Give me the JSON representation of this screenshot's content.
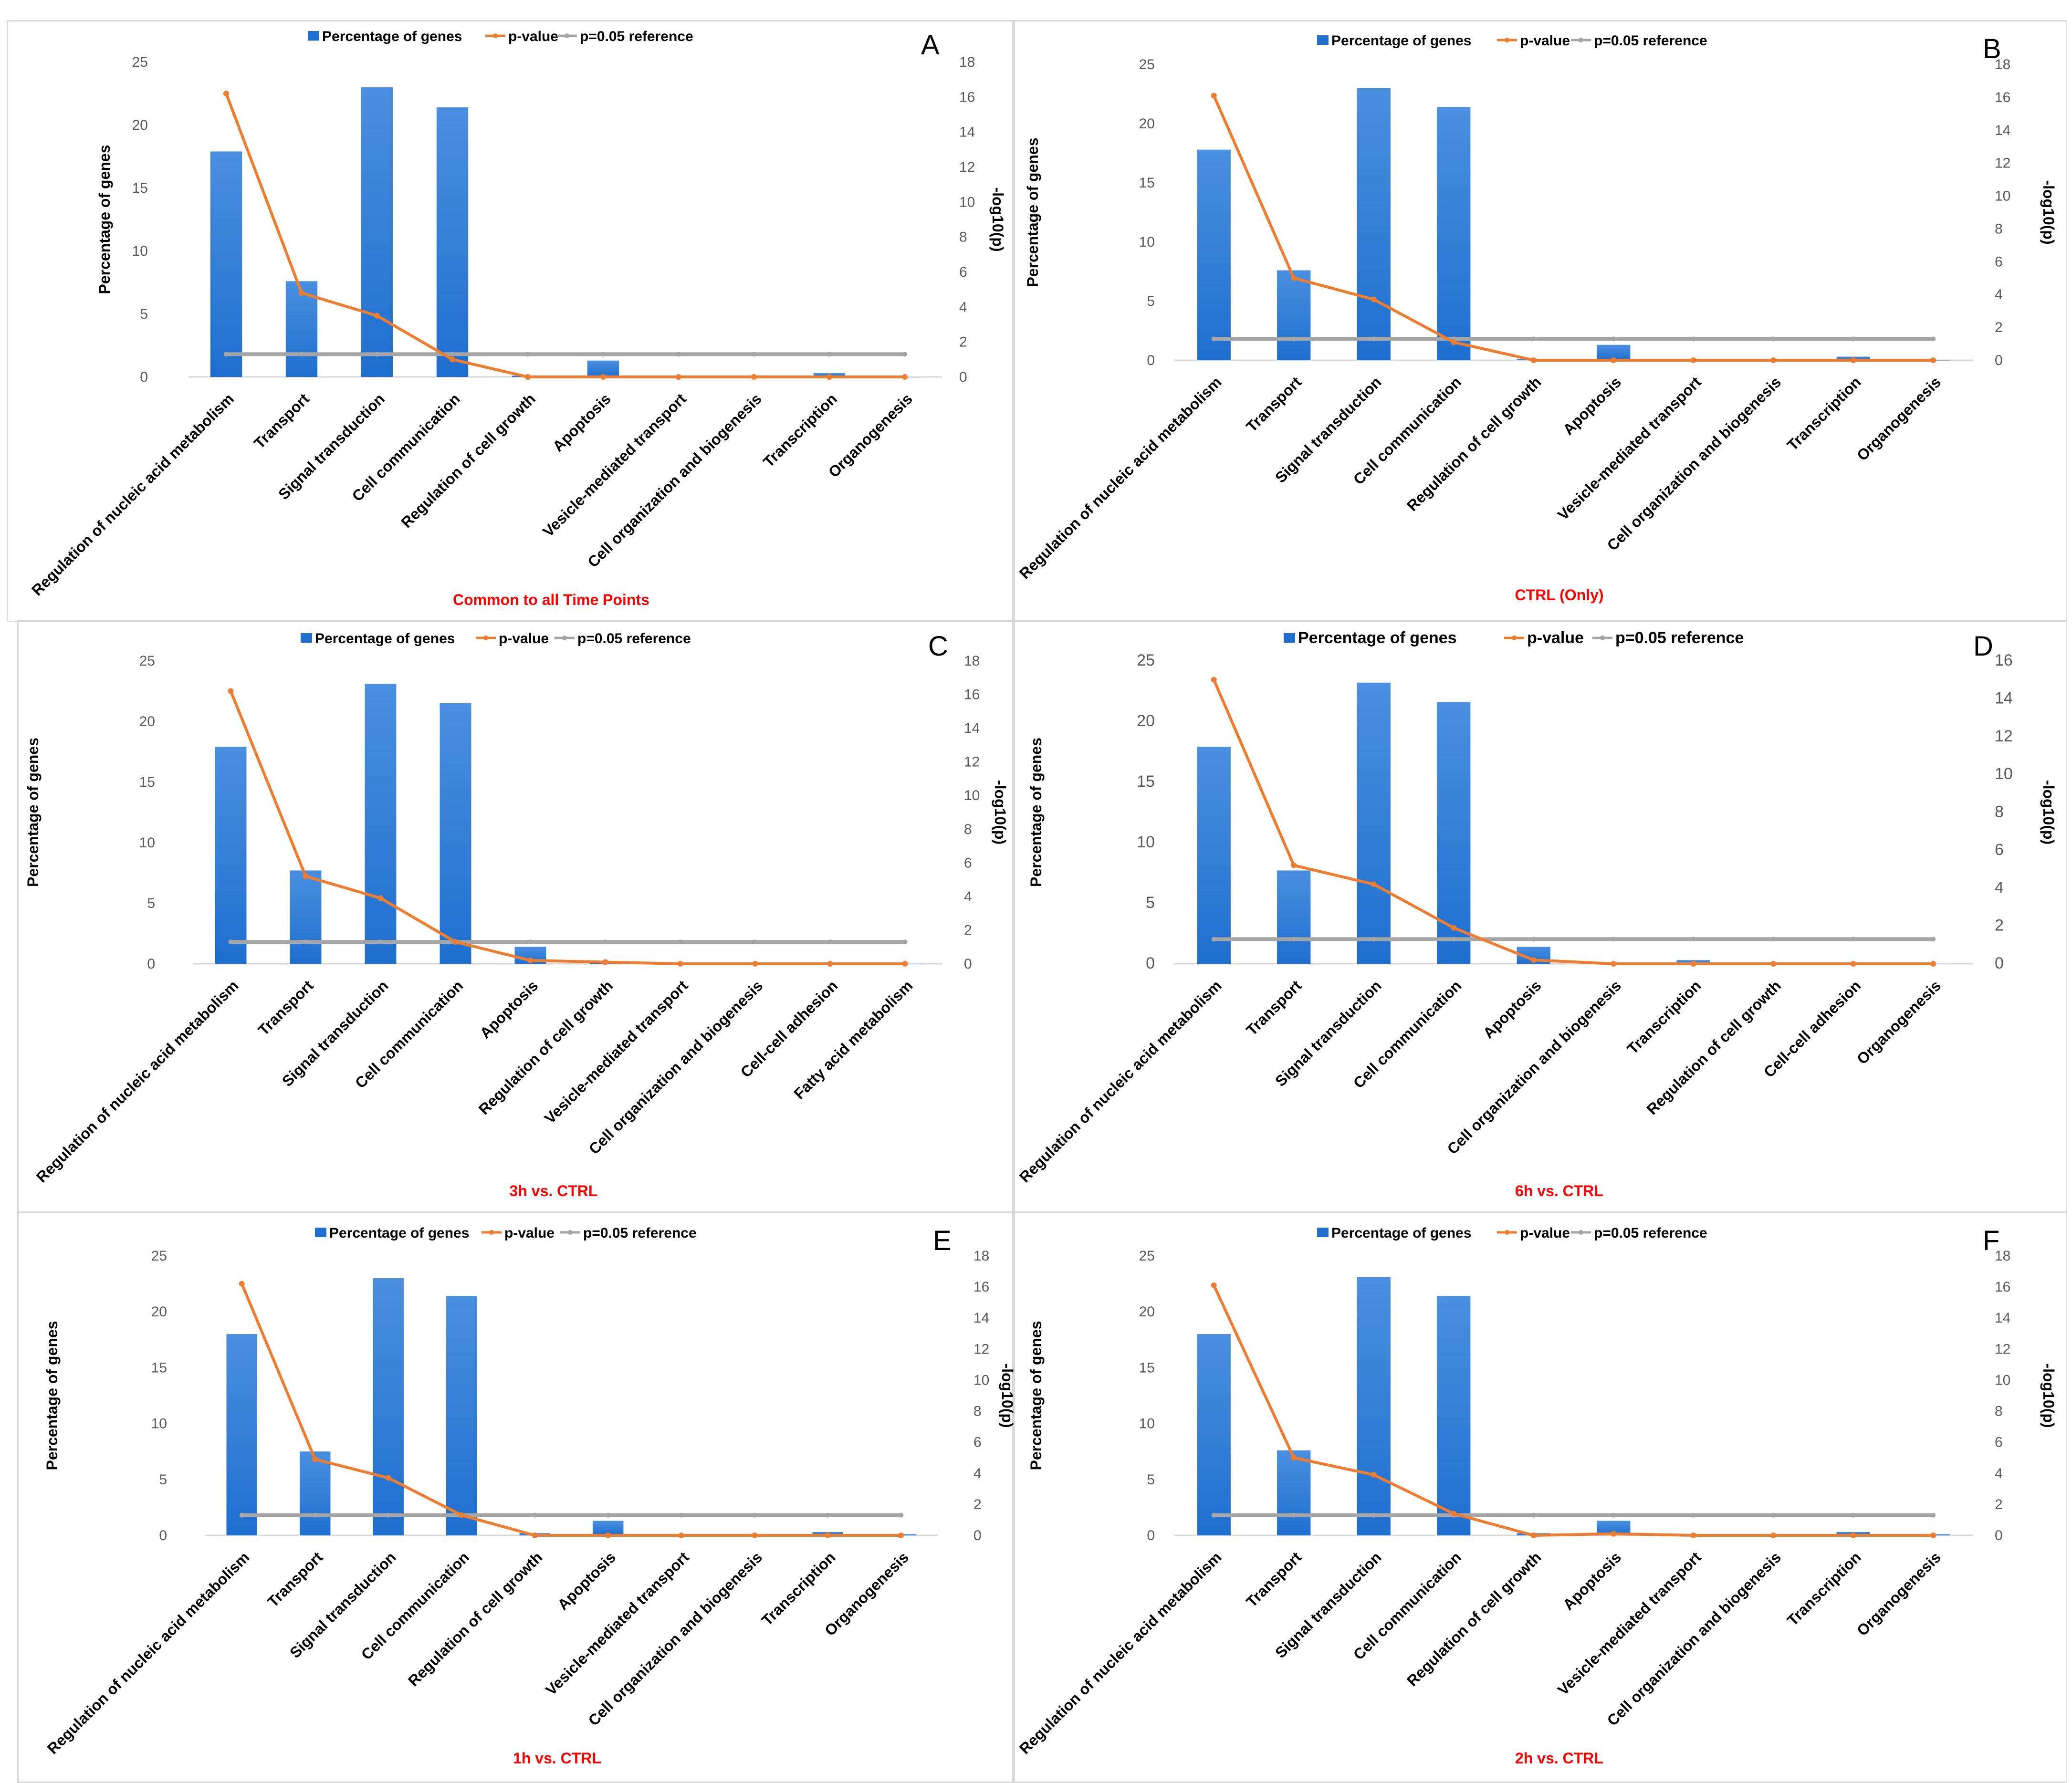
{
  "legend": {
    "bars": "Percentage of genes",
    "pvalue": "p-value",
    "reference": "p=0.05 reference"
  },
  "colors": {
    "bar": "#1f6fd0",
    "bar_light": "#4a8fe0",
    "pvalue": "#ed7d31",
    "reference": "#a5a5a5",
    "title": "#ff0000"
  },
  "chart_data": [
    {
      "type": "bar",
      "panel": "A",
      "title": "Common to all Time Points",
      "ylabel": "Percentage of genes",
      "y2label": "-log10(p)",
      "ylim": [
        0,
        25
      ],
      "yticks": [
        0,
        5,
        10,
        15,
        20,
        25
      ],
      "y2lim": [
        0,
        18
      ],
      "y2ticks": [
        0,
        2,
        4,
        6,
        8,
        10,
        12,
        14,
        16,
        18
      ],
      "categories": [
        "Regulation of nucleic acid metabolism",
        "Transport",
        "Signal transduction",
        "Cell communication",
        "Regulation of cell growth",
        "Apoptosis",
        "Vesicle-mediated transport",
        "Cell organization and biogenesis",
        "Transcription",
        "Organogenesis"
      ],
      "series": [
        {
          "name": "Percentage of genes",
          "kind": "bar",
          "axis": "left",
          "values": [
            17.9,
            7.6,
            23.0,
            21.4,
            0.1,
            1.3,
            0.1,
            0.0,
            0.3,
            0.0
          ]
        },
        {
          "name": "p-value",
          "kind": "line",
          "axis": "right",
          "values": [
            16.2,
            4.8,
            3.5,
            1.0,
            0.0,
            0.0,
            0.0,
            0.0,
            0.0,
            0.0
          ]
        },
        {
          "name": "p=0.05 reference",
          "kind": "line",
          "axis": "right",
          "values": [
            1.3,
            1.3,
            1.3,
            1.3,
            1.3,
            1.3,
            1.3,
            1.3,
            1.3,
            1.3
          ]
        }
      ]
    },
    {
      "type": "bar",
      "panel": "B",
      "title": "CTRL (Only)",
      "ylabel": "Percentage of genes",
      "y2label": "-log10(p)",
      "ylim": [
        0,
        25
      ],
      "yticks": [
        0,
        5,
        10,
        15,
        20,
        25
      ],
      "y2lim": [
        0,
        18
      ],
      "y2ticks": [
        0,
        2,
        4,
        6,
        8,
        10,
        12,
        14,
        16,
        18
      ],
      "categories": [
        "Regulation of nucleic acid metabolism",
        "Transport",
        "Signal transduction",
        "Cell communication",
        "Regulation of cell growth",
        "Apoptosis",
        "Vesicle-mediated transport",
        "Cell organization and biogenesis",
        "Transcription",
        "Organogenesis"
      ],
      "series": [
        {
          "name": "Percentage of genes",
          "kind": "bar",
          "axis": "left",
          "values": [
            17.8,
            7.6,
            23.0,
            21.4,
            0.1,
            1.3,
            0.1,
            0.0,
            0.3,
            0.0
          ]
        },
        {
          "name": "p-value",
          "kind": "line",
          "axis": "right",
          "values": [
            16.1,
            5.0,
            3.7,
            1.1,
            0.0,
            0.0,
            0.0,
            0.0,
            0.0,
            0.0
          ]
        },
        {
          "name": "p=0.05 reference",
          "kind": "line",
          "axis": "right",
          "values": [
            1.3,
            1.3,
            1.3,
            1.3,
            1.3,
            1.3,
            1.3,
            1.3,
            1.3,
            1.3
          ]
        }
      ]
    },
    {
      "type": "bar",
      "panel": "C",
      "title": "3h vs. CTRL",
      "ylabel": "Percentage of genes",
      "y2label": "-log10(p)",
      "ylim": [
        0,
        25
      ],
      "yticks": [
        0,
        5,
        10,
        15,
        20,
        25
      ],
      "y2lim": [
        0,
        18
      ],
      "y2ticks": [
        0,
        2,
        4,
        6,
        8,
        10,
        12,
        14,
        16,
        18
      ],
      "categories": [
        "Regulation of nucleic acid metabolism",
        "Transport",
        "Signal transduction",
        "Cell communication",
        "Apoptosis",
        "Regulation of cell growth",
        "Vesicle-mediated transport",
        "Cell organization and biogenesis",
        "Cell-cell adhesion",
        "Fatty acid metabolism"
      ],
      "series": [
        {
          "name": "Percentage of genes",
          "kind": "bar",
          "axis": "left",
          "values": [
            17.9,
            7.7,
            23.1,
            21.5,
            1.4,
            0.1,
            0.1,
            0.0,
            0.0,
            0.0
          ]
        },
        {
          "name": "p-value",
          "kind": "line",
          "axis": "right",
          "values": [
            16.2,
            5.2,
            3.9,
            1.3,
            0.2,
            0.1,
            0.0,
            0.0,
            0.0,
            0.0
          ]
        },
        {
          "name": "p=0.05 reference",
          "kind": "line",
          "axis": "right",
          "values": [
            1.3,
            1.3,
            1.3,
            1.3,
            1.3,
            1.3,
            1.3,
            1.3,
            1.3,
            1.3
          ]
        }
      ]
    },
    {
      "type": "bar",
      "panel": "D",
      "title": "6h vs. CTRL",
      "ylabel": "Percentage of genes",
      "y2label": "-log10(p)",
      "ylim": [
        0,
        25
      ],
      "yticks": [
        0,
        5,
        10,
        15,
        20,
        25
      ],
      "y2lim": [
        0,
        16
      ],
      "y2ticks": [
        0,
        2,
        4,
        6,
        8,
        10,
        12,
        14,
        16
      ],
      "categories": [
        "Regulation of nucleic acid metabolism",
        "Transport",
        "Signal transduction",
        "Cell communication",
        "Apoptosis",
        "Cell organization and biogenesis",
        "Transcription",
        "Regulation of cell growth",
        "Cell-cell adhesion",
        "Organogenesis"
      ],
      "series": [
        {
          "name": "Percentage of genes",
          "kind": "bar",
          "axis": "left",
          "values": [
            17.9,
            7.7,
            23.2,
            21.6,
            1.4,
            0.0,
            0.3,
            0.1,
            0.1,
            0.0
          ]
        },
        {
          "name": "p-value",
          "kind": "line",
          "axis": "right",
          "values": [
            15.0,
            5.2,
            4.2,
            1.9,
            0.2,
            0.0,
            0.0,
            0.0,
            0.0,
            0.0
          ]
        },
        {
          "name": "p=0.05 reference",
          "kind": "line",
          "axis": "right",
          "values": [
            1.3,
            1.3,
            1.3,
            1.3,
            1.3,
            1.3,
            1.3,
            1.3,
            1.3,
            1.3
          ]
        }
      ]
    },
    {
      "type": "bar",
      "panel": "E",
      "title": "1h vs. CTRL",
      "ylabel": "Percentage of genes",
      "y2label": "-log10(p)",
      "ylim": [
        0,
        25
      ],
      "yticks": [
        0,
        5,
        10,
        15,
        20,
        25
      ],
      "y2lim": [
        0,
        18
      ],
      "y2ticks": [
        0,
        2,
        4,
        6,
        8,
        10,
        12,
        14,
        16,
        18
      ],
      "categories": [
        "Regulation of nucleic acid metabolism",
        "Transport",
        "Signal transduction",
        "Cell communication",
        "Regulation of cell growth",
        "Apoptosis",
        "Vesicle-mediated transport",
        "Cell organization and biogenesis",
        "Transcription",
        "Organogenesis"
      ],
      "series": [
        {
          "name": "Percentage of genes",
          "kind": "bar",
          "axis": "left",
          "values": [
            18.0,
            7.5,
            23.0,
            21.4,
            0.2,
            1.3,
            0.1,
            0.0,
            0.3,
            0.1
          ]
        },
        {
          "name": "p-value",
          "kind": "line",
          "axis": "right",
          "values": [
            16.2,
            4.9,
            3.7,
            1.3,
            0.0,
            0.0,
            0.0,
            0.0,
            0.0,
            0.0
          ]
        },
        {
          "name": "p=0.05 reference",
          "kind": "line",
          "axis": "right",
          "values": [
            1.3,
            1.3,
            1.3,
            1.3,
            1.3,
            1.3,
            1.3,
            1.3,
            1.3,
            1.3
          ]
        }
      ]
    },
    {
      "type": "bar",
      "panel": "F",
      "title": "2h vs. CTRL",
      "ylabel": "Percentage of genes",
      "y2label": "-log10(p)",
      "ylim": [
        0,
        25
      ],
      "yticks": [
        0,
        5,
        10,
        15,
        20,
        25
      ],
      "y2lim": [
        0,
        18
      ],
      "y2ticks": [
        0,
        2,
        4,
        6,
        8,
        10,
        12,
        14,
        16,
        18
      ],
      "categories": [
        "Regulation of nucleic acid metabolism",
        "Transport",
        "Signal transduction",
        "Cell communication",
        "Regulation of cell growth",
        "Apoptosis",
        "Vesicle-mediated transport",
        "Cell organization and biogenesis",
        "Transcription",
        "Organogenesis"
      ],
      "series": [
        {
          "name": "Percentage of genes",
          "kind": "bar",
          "axis": "left",
          "values": [
            18.0,
            7.6,
            23.1,
            21.4,
            0.2,
            1.3,
            0.1,
            0.0,
            0.3,
            0.1
          ]
        },
        {
          "name": "p-value",
          "kind": "line",
          "axis": "right",
          "values": [
            16.1,
            5.0,
            3.9,
            1.4,
            0.0,
            0.1,
            0.0,
            0.0,
            0.0,
            0.0
          ]
        },
        {
          "name": "p=0.05 reference",
          "kind": "line",
          "axis": "right",
          "values": [
            1.3,
            1.3,
            1.3,
            1.3,
            1.3,
            1.3,
            1.3,
            1.3,
            1.3,
            1.3
          ]
        }
      ]
    }
  ]
}
